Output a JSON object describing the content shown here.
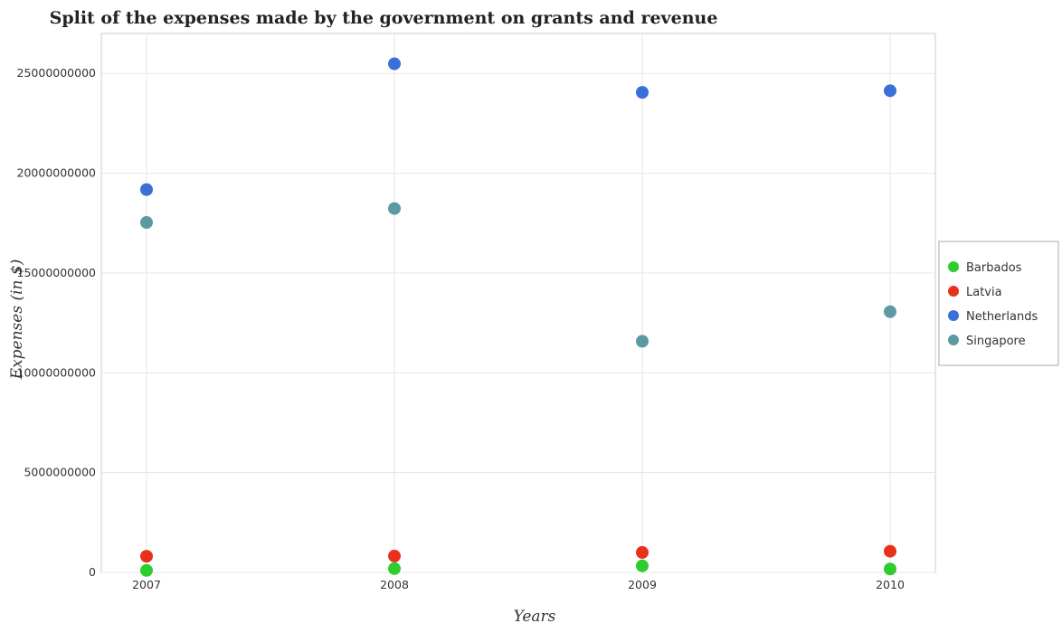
{
  "chart_data": {
    "type": "scatter",
    "title": "Split of the expenses made by the government on grants and revenue",
    "xlabel": "Years",
    "ylabel": "Expenses (in $)",
    "categories": [
      "2007",
      "2008",
      "2009",
      "2010"
    ],
    "ylim": [
      0,
      27000000000
    ],
    "yticks": [
      0,
      5000000000,
      10000000000,
      15000000000,
      20000000000,
      25000000000
    ],
    "ytick_labels": [
      "0",
      "5000000000",
      "10000000000",
      "15000000000",
      "20000000000",
      "25000000000"
    ],
    "grid": true,
    "legend_position": "right",
    "series": [
      {
        "name": "Barbados",
        "color": "#2ecc2e",
        "values": [
          100000000,
          190000000,
          330000000,
          170000000
        ]
      },
      {
        "name": "Latvia",
        "color": "#e8301a",
        "values": [
          810000000,
          820000000,
          1000000000,
          1060000000
        ]
      },
      {
        "name": "Netherlands",
        "color": "#3a6fd8",
        "values": [
          19180000000,
          25480000000,
          24050000000,
          24130000000
        ]
      },
      {
        "name": "Singapore",
        "color": "#5a9aa0",
        "values": [
          17530000000,
          18230000000,
          11580000000,
          13060000000
        ]
      }
    ]
  }
}
